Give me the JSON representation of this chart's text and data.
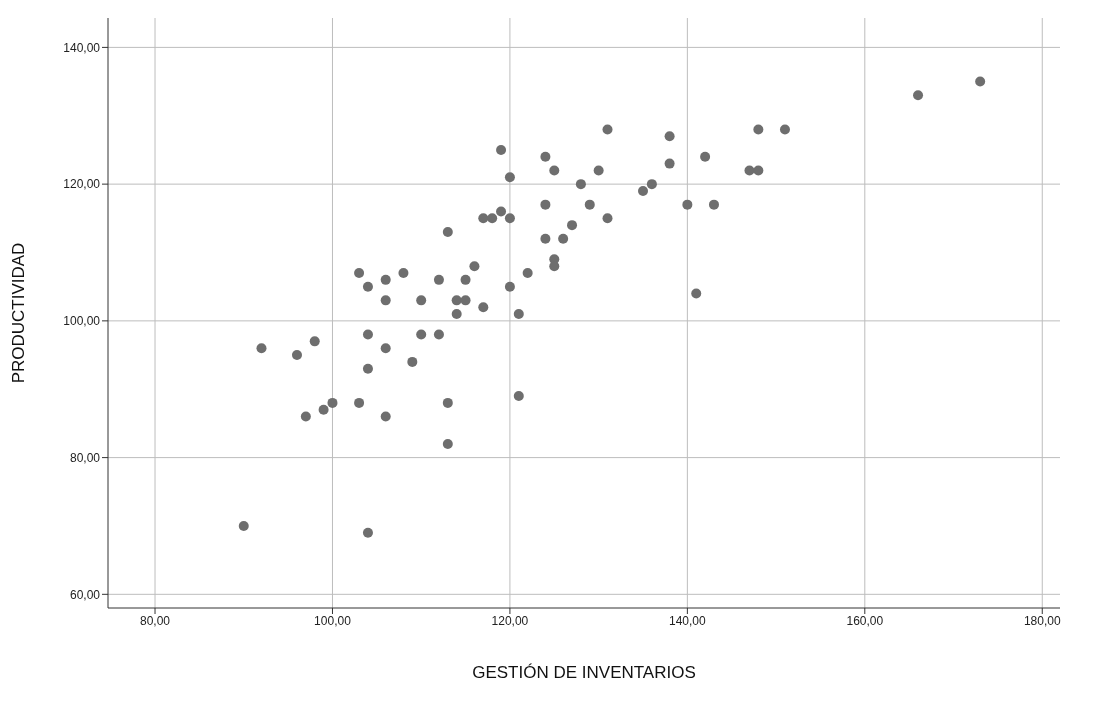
{
  "chart_data": {
    "type": "scatter",
    "xlabel": "GESTIÓN DE INVENTARIOS",
    "ylabel": "PRODUCTIVIDAD",
    "x": [
      90,
      92,
      96,
      98,
      97,
      99,
      100,
      103,
      103,
      104,
      104,
      104,
      104,
      106,
      106,
      106,
      106,
      108,
      110,
      110,
      109,
      112,
      112,
      113,
      113,
      113,
      114,
      114,
      115,
      115,
      116,
      117,
      117,
      118,
      119,
      119,
      120,
      120,
      120,
      121,
      121,
      122,
      124,
      124,
      124,
      125,
      125,
      125,
      126,
      127,
      128,
      129,
      130,
      131,
      131,
      135,
      136,
      138,
      138,
      140,
      141,
      142,
      143,
      147,
      148,
      148,
      151,
      166,
      173
    ],
    "series": [
      {
        "color": "#6e6e6e",
        "values": [
          70,
          96,
          95,
          97,
          86,
          87,
          88,
          88,
          107,
          105,
          98,
          93,
          69,
          106,
          103,
          96,
          86,
          107,
          103,
          98,
          94,
          106,
          98,
          113,
          88,
          82,
          103,
          101,
          106,
          103,
          108,
          115,
          102,
          115,
          116,
          125,
          121,
          115,
          105,
          101,
          89,
          107,
          124,
          117,
          112,
          122,
          109,
          108,
          112,
          114,
          120,
          117,
          122,
          128,
          115,
          119,
          120,
          127,
          123,
          117,
          104,
          124,
          117,
          122,
          122,
          128,
          128,
          133,
          135
        ]
      }
    ],
    "xlim": [
      74.7,
      182
    ],
    "ylim": [
      58,
      144.3
    ],
    "xticks": [
      {
        "value": 80,
        "label": "80,00"
      },
      {
        "value": 100,
        "label": "100,00"
      },
      {
        "value": 120,
        "label": "120,00"
      },
      {
        "value": 140,
        "label": "140,00"
      },
      {
        "value": 160,
        "label": "160,00"
      },
      {
        "value": 180,
        "label": "180,00"
      }
    ],
    "yticks": [
      {
        "value": 60,
        "label": "60,00"
      },
      {
        "value": 80,
        "label": "80,00"
      },
      {
        "value": 100,
        "label": "100,00"
      },
      {
        "value": 120,
        "label": "120,00"
      },
      {
        "value": 140,
        "label": "140,00"
      }
    ],
    "grid": true,
    "marker": "circle",
    "legend": false
  }
}
